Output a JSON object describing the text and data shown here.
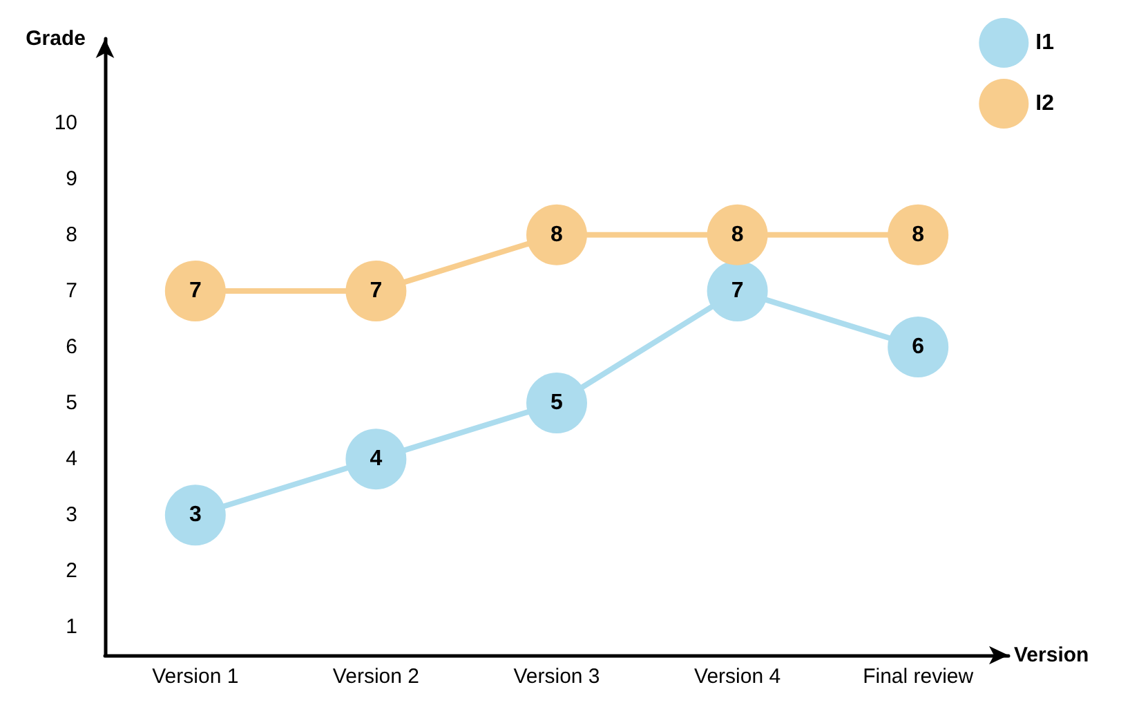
{
  "chart_data": {
    "type": "line",
    "xlabel": "Version",
    "ylabel": "Grade",
    "categories": [
      "Version 1",
      "Version 2",
      "Version 3",
      "Version 4",
      "Final review"
    ],
    "series": [
      {
        "name": "I1",
        "color": "#acdcee",
        "values": [
          3,
          4,
          5,
          7,
          6
        ]
      },
      {
        "name": "I2",
        "color": "#f8cd8d",
        "values": [
          7,
          7,
          8,
          8,
          8
        ]
      }
    ],
    "ylim": [
      0.5,
      11.5
    ],
    "yticks": [
      1,
      2,
      3,
      4,
      5,
      6,
      7,
      8,
      9,
      10
    ],
    "grid": false,
    "legend": "top right",
    "marker": "circle",
    "line_style": "solid",
    "data_labels": true
  }
}
